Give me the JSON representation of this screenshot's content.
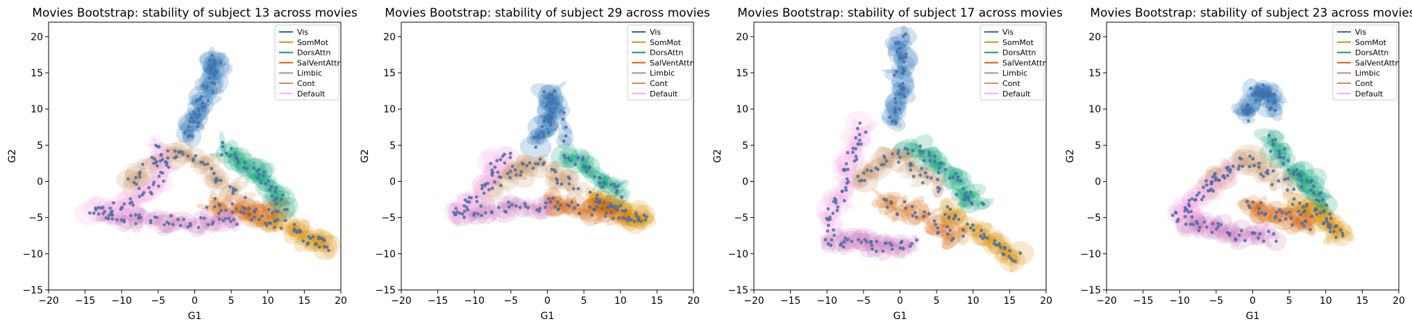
{
  "chart_data": [
    {
      "type": "scatter",
      "title": "Movies Bootstrap: stability of subject 13 across movies",
      "xlabel": "G1",
      "ylabel": "G2",
      "xlim": [
        -20,
        20
      ],
      "ylim": [
        -15,
        22
      ],
      "xticks": [
        "−20",
        "−15",
        "−10",
        "−5",
        "0",
        "5",
        "10",
        "15",
        "20"
      ],
      "yticks": [
        "−15",
        "−10",
        "−5",
        "0",
        "5",
        "10",
        "15",
        "20"
      ],
      "grid": false,
      "legend_position": "top-right",
      "legend": [
        "Vis",
        "SomMot",
        "DorsAttn",
        "SalVentAttn",
        "Limbic",
        "Cont",
        "Default"
      ],
      "skeleton": {
        "Vis": [
          [
            -1,
            6
          ],
          [
            0,
            8.5
          ],
          [
            1,
            11
          ],
          [
            2,
            13.5
          ],
          [
            2.7,
            15.5
          ],
          [
            2.9,
            17
          ]
        ],
        "SomMot": [
          [
            9,
            -5
          ],
          [
            12,
            -6
          ],
          [
            15,
            -7.5
          ],
          [
            17,
            -8.3
          ],
          [
            18.5,
            -9
          ]
        ],
        "DorsAttn": [
          [
            3,
            5
          ],
          [
            6,
            3
          ],
          [
            9,
            1
          ],
          [
            11,
            -1.5
          ],
          [
            12,
            -3.5
          ]
        ],
        "SalVentAttn": [
          [
            2,
            -3
          ],
          [
            5,
            -4
          ],
          [
            8,
            -4.5
          ],
          [
            11,
            -4.8
          ]
        ],
        "Limbic": [
          [
            -13,
            -4.5
          ],
          [
            -10,
            -5
          ],
          [
            -6,
            -5.3
          ],
          [
            -2,
            -5.5
          ],
          [
            2,
            -5.7
          ],
          [
            6,
            -5.5
          ]
        ],
        "Cont": [
          [
            -9,
            0
          ],
          [
            -6,
            2
          ],
          [
            -3,
            4
          ],
          [
            0,
            3
          ],
          [
            3,
            0
          ],
          [
            7,
            -2
          ]
        ],
        "Default": [
          [
            -14,
            -4.5
          ],
          [
            -12,
            -4
          ],
          [
            -9,
            -3
          ],
          [
            -6,
            -1
          ],
          [
            -4,
            2
          ],
          [
            -5,
            5
          ]
        ]
      }
    },
    {
      "type": "scatter",
      "title": "Movies Bootstrap: stability of subject 29 across movies",
      "xlabel": "G1",
      "ylabel": "G2",
      "xlim": [
        -20,
        20
      ],
      "ylim": [
        -15,
        22
      ],
      "xticks": [
        "−20",
        "−15",
        "−10",
        "−5",
        "0",
        "5",
        "10",
        "15",
        "20"
      ],
      "yticks": [
        "−15",
        "−10",
        "−5",
        "0",
        "5",
        "10",
        "15",
        "20"
      ],
      "grid": false,
      "legend_position": "top-right",
      "legend": [
        "Vis",
        "SomMot",
        "DorsAttn",
        "SalVentAttn",
        "Limbic",
        "Cont",
        "Default"
      ],
      "skeleton": {
        "Vis": [
          [
            -2,
            5
          ],
          [
            0,
            7.5
          ],
          [
            0.5,
            10
          ],
          [
            0.2,
            12.5
          ],
          [
            3,
            5
          ]
        ],
        "SomMot": [
          [
            6,
            -2
          ],
          [
            8,
            -3
          ],
          [
            10,
            -4
          ],
          [
            12,
            -5
          ],
          [
            13.5,
            -5.8
          ]
        ],
        "DorsAttn": [
          [
            2,
            4
          ],
          [
            5,
            2
          ],
          [
            8,
            0
          ],
          [
            10,
            -2
          ]
        ],
        "SalVentAttn": [
          [
            0,
            -3
          ],
          [
            3,
            -3.5
          ],
          [
            7,
            -4
          ],
          [
            10,
            -4.5
          ]
        ],
        "Limbic": [
          [
            -12,
            -4.5
          ],
          [
            -8,
            -4
          ],
          [
            -4,
            -3.5
          ],
          [
            0,
            -3.8
          ]
        ],
        "Cont": [
          [
            -8,
            -1
          ],
          [
            -5,
            1
          ],
          [
            -2,
            3
          ],
          [
            1,
            1
          ],
          [
            4,
            -1
          ]
        ],
        "Default": [
          [
            -13,
            -4.5
          ],
          [
            -11,
            -3
          ],
          [
            -9,
            -1
          ],
          [
            -7,
            2
          ],
          [
            -5,
            4
          ]
        ]
      }
    },
    {
      "type": "scatter",
      "title": "Movies Bootstrap: stability of subject 17 across movies",
      "xlabel": "G1",
      "ylabel": "G2",
      "xlim": [
        -20,
        20
      ],
      "ylim": [
        -15,
        22
      ],
      "xticks": [
        "−20",
        "−15",
        "−10",
        "−5",
        "0",
        "5",
        "10",
        "15",
        "20"
      ],
      "yticks": [
        "−15",
        "−10",
        "−5",
        "0",
        "5",
        "10",
        "15",
        "20"
      ],
      "grid": false,
      "legend_position": "top-right",
      "legend": [
        "Vis",
        "SomMot",
        "DorsAttn",
        "SalVentAttn",
        "Limbic",
        "Cont",
        "Default"
      ],
      "skeleton": {
        "Vis": [
          [
            -1,
            8
          ],
          [
            0,
            11
          ],
          [
            0,
            14
          ],
          [
            0.2,
            17
          ],
          [
            0,
            20.3
          ]
        ],
        "SomMot": [
          [
            6,
            -4
          ],
          [
            9,
            -6
          ],
          [
            12,
            -8
          ],
          [
            14,
            -9.5
          ],
          [
            16,
            -10.7
          ]
        ],
        "DorsAttn": [
          [
            1,
            5
          ],
          [
            4,
            3
          ],
          [
            7,
            1
          ],
          [
            9,
            -2
          ],
          [
            11,
            -4
          ]
        ],
        "SalVentAttn": [
          [
            -2,
            -3
          ],
          [
            1,
            -4
          ],
          [
            5,
            -6
          ],
          [
            8,
            -8
          ]
        ],
        "Limbic": [
          [
            -10,
            -8
          ],
          [
            -7,
            -8.5
          ],
          [
            -4,
            -9
          ],
          [
            -1,
            -9
          ],
          [
            2,
            -8.5
          ]
        ],
        "Cont": [
          [
            -6,
            0
          ],
          [
            -3,
            2
          ],
          [
            0,
            4
          ],
          [
            3,
            1
          ],
          [
            6,
            -1
          ]
        ],
        "Default": [
          [
            -10,
            -7
          ],
          [
            -9,
            -4
          ],
          [
            -8,
            -1
          ],
          [
            -7,
            2
          ],
          [
            -6,
            5
          ],
          [
            -5,
            8
          ]
        ]
      }
    },
    {
      "type": "scatter",
      "title": "Movies Bootstrap: stability of subject 23 across movies",
      "xlabel": "G1",
      "ylabel": "G2",
      "xlim": [
        -20,
        20
      ],
      "ylim": [
        -15,
        22
      ],
      "xticks": [
        "−20",
        "−15",
        "−10",
        "−5",
        "0",
        "5",
        "10",
        "15",
        "20"
      ],
      "yticks": [
        "−15",
        "−10",
        "−5",
        "0",
        "5",
        "10",
        "15",
        "20"
      ],
      "grid": false,
      "legend_position": "top-right",
      "legend": [
        "Vis",
        "SomMot",
        "DorsAttn",
        "SalVentAttn",
        "Limbic",
        "Cont",
        "Default"
      ],
      "skeleton": {
        "Vis": [
          [
            -1,
            9
          ],
          [
            0,
            11
          ],
          [
            1,
            13
          ],
          [
            2,
            12
          ],
          [
            3,
            10
          ]
        ],
        "SomMot": [
          [
            6,
            -3
          ],
          [
            8,
            -4
          ],
          [
            10,
            -5
          ],
          [
            11,
            -6.5
          ],
          [
            12,
            -7.5
          ]
        ],
        "DorsAttn": [
          [
            2,
            6
          ],
          [
            4,
            4
          ],
          [
            6,
            1
          ],
          [
            8,
            -1
          ],
          [
            10,
            -3
          ]
        ],
        "SalVentAttn": [
          [
            -1,
            -3
          ],
          [
            2,
            -4
          ],
          [
            5,
            -5
          ],
          [
            8,
            -6
          ]
        ],
        "Limbic": [
          [
            -10,
            -5
          ],
          [
            -7,
            -6
          ],
          [
            -4,
            -7
          ],
          [
            -1,
            -7.5
          ],
          [
            3,
            -7.5
          ]
        ],
        "Cont": [
          [
            -7,
            -1
          ],
          [
            -4,
            1
          ],
          [
            -1,
            3
          ],
          [
            2,
            1
          ],
          [
            5,
            -1
          ]
        ],
        "Default": [
          [
            -10.5,
            -5.2
          ],
          [
            -9,
            -4
          ],
          [
            -7,
            -2
          ],
          [
            -5,
            0
          ],
          [
            -3,
            2
          ]
        ]
      }
    }
  ],
  "colors": {
    "Vis": "#1f6fb2",
    "SomMot": "#de8f05",
    "DorsAttn": "#029e73",
    "SalVentAttn": "#d55e00",
    "Limbic": "#cc78bc",
    "Cont": "#ca9161",
    "Default": "#fbafe4",
    "dot": "#4a6fa5"
  }
}
